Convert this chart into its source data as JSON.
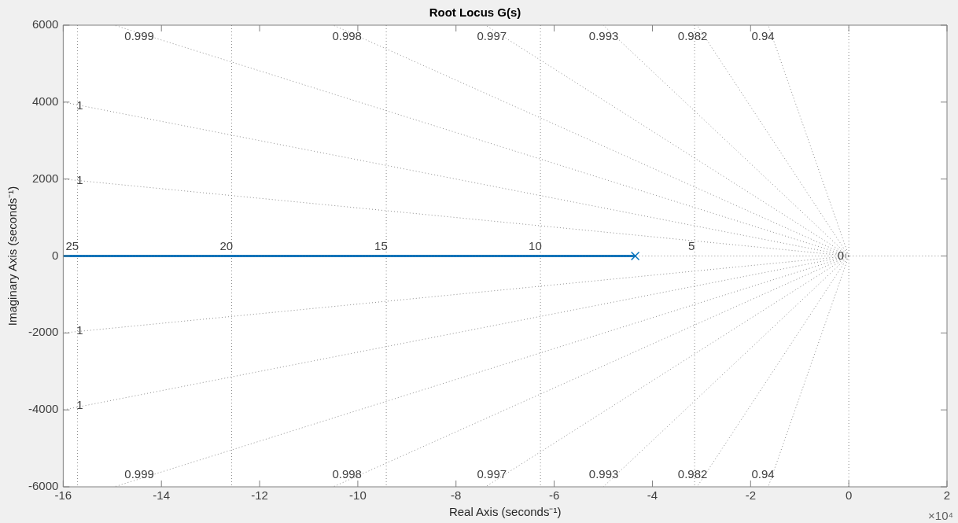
{
  "chart_data": {
    "type": "line",
    "title": "Root Locus G(s)",
    "xlabel": "Real Axis (seconds⁻¹)",
    "ylabel": "Imaginary Axis (seconds⁻¹)",
    "xlim": [
      -16,
      2
    ],
    "xticks": [
      -16,
      -14,
      -12,
      -10,
      -8,
      -6,
      -4,
      -2,
      0,
      2
    ],
    "ylim": [
      -6000,
      6000
    ],
    "yticks": [
      -6000,
      -4000,
      -2000,
      0,
      2000,
      4000,
      6000
    ],
    "grid": false,
    "legend": false,
    "series": [
      {
        "type": "line",
        "color": "#8c8c8c",
        "line_style": "dotted",
        "marker": "none",
        "x": [
          0,
          -14.96
        ],
        "values": [
          0,
          6000
        ]
      },
      {
        "type": "line",
        "color": "#8c8c8c",
        "line_style": "dotted",
        "marker": "none",
        "x": [
          0,
          -16
        ],
        "values": [
          0,
          4000
        ]
      },
      {
        "type": "line",
        "color": "#8c8c8c",
        "line_style": "dotted",
        "marker": "none",
        "x": [
          0,
          -16
        ],
        "values": [
          0,
          2000
        ]
      },
      {
        "type": "line",
        "color": "#8c8c8c",
        "line_style": "dotted",
        "marker": "none",
        "x": [
          0,
          -10.5
        ],
        "values": [
          0,
          6000
        ]
      },
      {
        "type": "line",
        "color": "#8c8c8c",
        "line_style": "dotted",
        "marker": "none",
        "x": [
          0,
          -7.4
        ],
        "values": [
          0,
          6000
        ]
      },
      {
        "type": "line",
        "color": "#8c8c8c",
        "line_style": "dotted",
        "marker": "none",
        "x": [
          0,
          -5.0
        ],
        "values": [
          0,
          6000
        ]
      },
      {
        "type": "line",
        "color": "#8c8c8c",
        "line_style": "dotted",
        "marker": "none",
        "x": [
          0,
          -3.09
        ],
        "values": [
          0,
          6000
        ]
      },
      {
        "type": "line",
        "color": "#8c8c8c",
        "line_style": "dotted",
        "marker": "none",
        "x": [
          0,
          -1.64
        ],
        "values": [
          0,
          6000
        ]
      },
      {
        "type": "line",
        "color": "#8c8c8c",
        "line_style": "dotted",
        "marker": "none",
        "x": [
          0,
          -14.96
        ],
        "values": [
          0,
          -6000
        ]
      },
      {
        "type": "line",
        "color": "#8c8c8c",
        "line_style": "dotted",
        "marker": "none",
        "x": [
          0,
          -16
        ],
        "values": [
          0,
          -4000
        ]
      },
      {
        "type": "line",
        "color": "#8c8c8c",
        "line_style": "dotted",
        "marker": "none",
        "x": [
          0,
          -16
        ],
        "values": [
          0,
          -2000
        ]
      },
      {
        "type": "line",
        "color": "#8c8c8c",
        "line_style": "dotted",
        "marker": "none",
        "x": [
          0,
          -10.5
        ],
        "values": [
          0,
          -6000
        ]
      },
      {
        "type": "line",
        "color": "#8c8c8c",
        "line_style": "dotted",
        "marker": "none",
        "x": [
          0,
          -7.4
        ],
        "values": [
          0,
          -6000
        ]
      },
      {
        "type": "line",
        "color": "#8c8c8c",
        "line_style": "dotted",
        "marker": "none",
        "x": [
          0,
          -5.0
        ],
        "values": [
          0,
          -6000
        ]
      },
      {
        "type": "line",
        "color": "#8c8c8c",
        "line_style": "dotted",
        "marker": "none",
        "x": [
          0,
          -3.09
        ],
        "values": [
          0,
          -6000
        ]
      },
      {
        "type": "line",
        "color": "#8c8c8c",
        "line_style": "dotted",
        "marker": "none",
        "x": [
          0,
          -1.64
        ],
        "values": [
          0,
          -6000
        ]
      },
      {
        "type": "line",
        "color": "#8c8c8c",
        "line_style": "dotted",
        "marker": "none",
        "x": [
          -16,
          2
        ],
        "values": [
          0,
          0
        ]
      },
      {
        "type": "line",
        "color": "#8c8c8c",
        "line_style": "dotted",
        "marker": "none",
        "x": [
          0,
          0
        ],
        "values": [
          -6000,
          6000
        ]
      },
      {
        "type": "line",
        "color": "#0072bd",
        "line_style": "solid",
        "marker": "none",
        "x": [
          -4.35,
          -16
        ],
        "values": [
          0,
          0
        ]
      },
      {
        "type": "scatter",
        "color": "#0072bd",
        "marker": "cross",
        "x": [
          -4.35
        ],
        "values": [
          0
        ]
      }
    ],
    "ref_lines": [
      {
        "axis": "x",
        "value": -15.71,
        "color": "#8c8c8c",
        "line_style": "dotted"
      },
      {
        "axis": "x",
        "value": -12.57,
        "color": "#8c8c8c",
        "line_style": "dotted"
      },
      {
        "axis": "x",
        "value": -9.42,
        "color": "#8c8c8c",
        "line_style": "dotted"
      },
      {
        "axis": "x",
        "value": -6.28,
        "color": "#8c8c8c",
        "line_style": "dotted"
      },
      {
        "axis": "x",
        "value": -3.14,
        "color": "#8c8c8c",
        "line_style": "dotted"
      }
    ],
    "annotations": [
      {
        "text": "25",
        "x": -15.71,
        "y": 230
      },
      {
        "text": "20",
        "x": -12.57,
        "y": 230
      },
      {
        "text": "15",
        "x": -9.42,
        "y": 230
      },
      {
        "text": "10",
        "x": -6.28,
        "y": 230
      },
      {
        "text": "5",
        "x": -3.14,
        "y": 230
      },
      {
        "text": "0.999",
        "x": -14.21,
        "y": 5700
      },
      {
        "text": "0.998",
        "x": -9.98,
        "y": 5700
      },
      {
        "text": "0.997",
        "x": -7.03,
        "y": 5700
      },
      {
        "text": "0.993",
        "x": -4.75,
        "y": 5700
      },
      {
        "text": "0.982",
        "x": -2.94,
        "y": 5700
      },
      {
        "text": "0.94",
        "x": -1.56,
        "y": 5700
      },
      {
        "text": "1",
        "x": -15.6,
        "y": 3900
      },
      {
        "text": "1",
        "x": -15.6,
        "y": 1950
      },
      {
        "text": "1",
        "x": -15.6,
        "y": -1950
      },
      {
        "text": "1",
        "x": -15.6,
        "y": -3900
      },
      {
        "text": "0.999",
        "x": -14.21,
        "y": -5700
      },
      {
        "text": "0.998",
        "x": -9.98,
        "y": -5700
      },
      {
        "text": "0.997",
        "x": -7.03,
        "y": -5700
      },
      {
        "text": "0.993",
        "x": -4.75,
        "y": -5700
      },
      {
        "text": "0.982",
        "x": -2.94,
        "y": -5700
      },
      {
        "text": "0.94",
        "x": -1.56,
        "y": -5700
      },
      {
        "text": "0",
        "x": -0.1,
        "y": 0
      },
      "×10⁴"
    ]
  }
}
